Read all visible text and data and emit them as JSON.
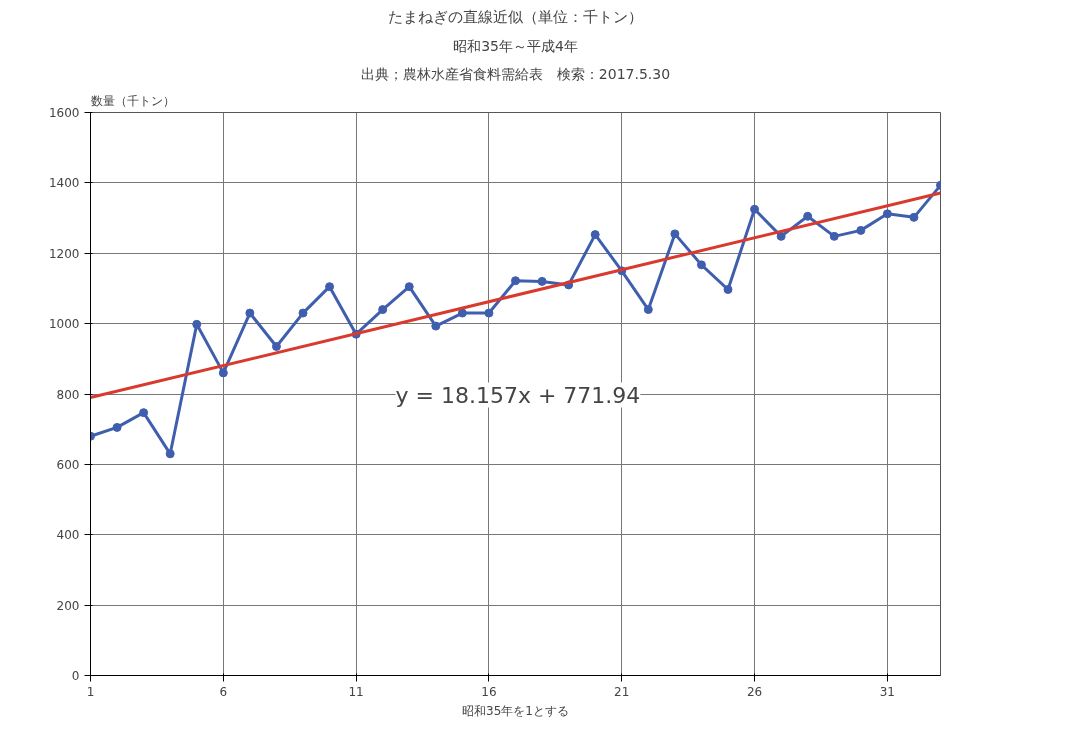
{
  "chart_data": {
    "type": "line",
    "title": "たまねぎの直線近似（単位：千トン）",
    "subtitle": "昭和35年～平成4年",
    "annotations": [
      "出典；農林水産省食料需給表　検索：2017.5.30",
      "y = 18.157x + 771.94"
    ],
    "xlabel": "昭和35年を1とする",
    "ylabel": "数量（千トン）",
    "x": [
      1,
      2,
      3,
      4,
      5,
      6,
      7,
      8,
      9,
      10,
      11,
      12,
      13,
      14,
      15,
      16,
      17,
      18,
      19,
      20,
      21,
      22,
      23,
      24,
      25,
      26,
      27,
      28,
      29,
      30,
      31,
      32,
      33
    ],
    "series": [
      {
        "color": "#3f5fae",
        "marker": "circle",
        "values": [
          680,
          705,
          747,
          630,
          998,
          860,
          1030,
          935,
          1030,
          1105,
          970,
          1040,
          1105,
          993,
          1030,
          1030,
          1122,
          1120,
          1110,
          1253,
          1150,
          1040,
          1255,
          1167,
          1097,
          1325,
          1248,
          1305,
          1248,
          1265,
          1312,
          1302,
          1393
        ]
      },
      {
        "type": "line",
        "color": "#d83a2e",
        "marker": "none",
        "x": [
          1,
          33
        ],
        "values": [
          790,
          1371
        ]
      }
    ],
    "xlim": [
      1,
      33
    ],
    "xticks": [
      1,
      6,
      11,
      16,
      21,
      26,
      31
    ],
    "ylim": [
      0,
      1600
    ],
    "yticks": [
      0,
      200,
      400,
      600,
      800,
      1000,
      1200,
      1400,
      1600
    ],
    "grid": true
  }
}
